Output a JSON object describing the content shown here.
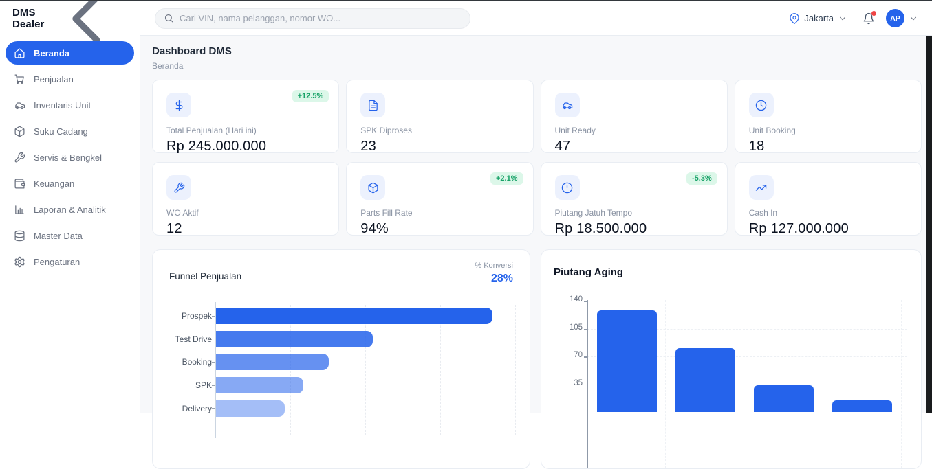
{
  "app": {
    "title": "DMS Dealer"
  },
  "header": {
    "search": {
      "placeholder": "Cari VIN, nama pelanggan, nomor WO..."
    },
    "location": {
      "label": "Jakarta"
    },
    "notifications": {
      "has_unread": true
    },
    "user": {
      "initials": "AP"
    }
  },
  "sidebar": {
    "items": [
      {
        "label": "Beranda",
        "icon": "home",
        "active": true
      },
      {
        "label": "Penjualan",
        "icon": "cart",
        "active": false
      },
      {
        "label": "Inventaris Unit",
        "icon": "car",
        "active": false
      },
      {
        "label": "Suku Cadang",
        "icon": "package",
        "active": false
      },
      {
        "label": "Servis & Bengkel",
        "icon": "wrench",
        "active": false
      },
      {
        "label": "Keuangan",
        "icon": "wallet",
        "active": false
      },
      {
        "label": "Laporan & Analitik",
        "icon": "chart",
        "active": false
      },
      {
        "label": "Master Data",
        "icon": "database",
        "active": false
      },
      {
        "label": "Pengaturan",
        "icon": "gear",
        "active": false
      }
    ]
  },
  "page": {
    "title": "Dashboard DMS",
    "breadcrumb": "Beranda"
  },
  "kpis": [
    {
      "label": "Total Penjualan (Hari ini)",
      "value": "Rp 245.000.000",
      "badge": "+12.5%",
      "icon": "dollar"
    },
    {
      "label": "SPK Diproses",
      "value": "23",
      "icon": "file-text"
    },
    {
      "label": "Unit Ready",
      "value": "47",
      "icon": "car"
    },
    {
      "label": "Unit Booking",
      "value": "18",
      "icon": "clock"
    },
    {
      "label": "WO Aktif",
      "value": "12",
      "icon": "wrench"
    },
    {
      "label": "Parts Fill Rate",
      "value": "94%",
      "badge": "+2.1%",
      "icon": "package"
    },
    {
      "label": "Piutang Jatuh Tempo",
      "value": "Rp 18.500.000",
      "badge": "-5.3%",
      "icon": "alert-circle"
    },
    {
      "label": "Cash In",
      "value": "Rp 127.000.000",
      "icon": "trending-up"
    }
  ],
  "colors": {
    "primary_blue": "#2563eb",
    "badge_bg": "#dcf7e9",
    "badge_text": "#17a267",
    "chart_bar": "#2563eb"
  },
  "chart_data": [
    {
      "type": "bar",
      "orientation": "horizontal",
      "title": "Funnel Penjualan",
      "legend_label": "% Konversi",
      "conversion_value": "28%",
      "categories": [
        "Prospek",
        "Test Drive",
        "Booking",
        "SPK",
        "Delivery"
      ],
      "values": [
        120,
        68,
        49,
        38,
        30
      ],
      "xlim": [
        0,
        130
      ],
      "bar_color": "#2563eb",
      "bar_opacities": [
        1,
        0.85,
        0.7,
        0.55,
        0.42
      ],
      "grid": true
    },
    {
      "type": "bar",
      "title": "Piutang Aging",
      "categories": [
        "",
        "",
        "",
        ""
      ],
      "values": [
        128,
        80,
        34,
        15
      ],
      "ylim": [
        0,
        140
      ],
      "yticks": [
        35,
        70,
        105,
        140
      ],
      "bar_color": "#2563eb",
      "grid": true
    }
  ]
}
